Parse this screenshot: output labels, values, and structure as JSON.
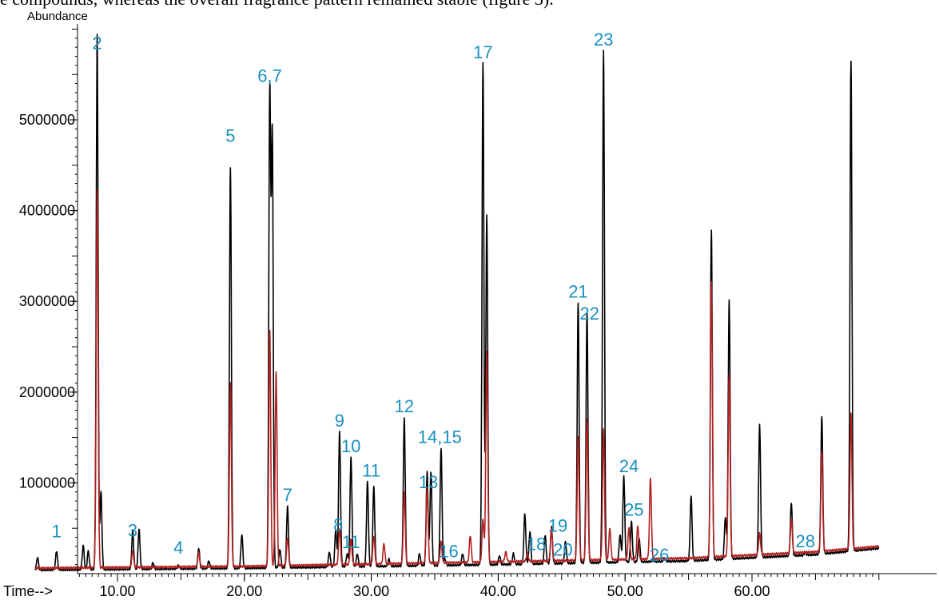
{
  "page": {
    "text": "e compounds, whereas the overall fragrance pattern remained stable (figure 3)."
  },
  "chart_data": {
    "type": "line",
    "ylabel": "Abundance",
    "xlabel": "Time-->",
    "xlim": [
      3.5,
      70.0
    ],
    "ylim": [
      0,
      6000000
    ],
    "x_ticks": [
      10,
      20,
      30,
      40,
      50,
      60
    ],
    "x_tick_labels": [
      "10.00",
      "20.00",
      "30.00",
      "40.00",
      "50.00",
      "60.00"
    ],
    "y_ticks": [
      1000000,
      2000000,
      3000000,
      4000000,
      5000000
    ],
    "y_tick_labels": [
      "1000000",
      "2000000",
      "3000000",
      "4000000",
      "5000000"
    ],
    "grid": false,
    "colors": {
      "black_trace": "#000000",
      "red_trace": "#b22222",
      "peak_label": "#1a8fbf"
    },
    "series": [
      {
        "color": "#000000",
        "baseline": [
          [
            3.5,
            40000
          ],
          [
            20,
            60000
          ],
          [
            40,
            100000
          ],
          [
            55,
            140000
          ],
          [
            65,
            210000
          ],
          [
            70,
            280000
          ]
        ],
        "peaks": [
          [
            3.7,
            180000
          ],
          [
            5.2,
            250000
          ],
          [
            7.3,
            310000
          ],
          [
            7.7,
            250000
          ],
          [
            8.4,
            5950000
          ],
          [
            8.7,
            900000
          ],
          [
            11.2,
            470000
          ],
          [
            11.7,
            490000
          ],
          [
            12.8,
            120000
          ],
          [
            14.8,
            90000
          ],
          [
            16.4,
            280000
          ],
          [
            17.2,
            140000
          ],
          [
            18.9,
            4480000
          ],
          [
            19.8,
            430000
          ],
          [
            22.0,
            5280000
          ],
          [
            22.2,
            4800000
          ],
          [
            22.8,
            270000
          ],
          [
            23.4,
            740000
          ],
          [
            26.7,
            240000
          ],
          [
            27.2,
            480000
          ],
          [
            27.5,
            1560000
          ],
          [
            28.1,
            220000
          ],
          [
            28.4,
            1290000
          ],
          [
            28.9,
            220000
          ],
          [
            29.7,
            1010000
          ],
          [
            30.2,
            960000
          ],
          [
            31.4,
            160000
          ],
          [
            32.6,
            1720000
          ],
          [
            33.8,
            220000
          ],
          [
            34.4,
            1120000
          ],
          [
            34.7,
            1120000
          ],
          [
            35.5,
            1380000
          ],
          [
            35.8,
            160000
          ],
          [
            37.2,
            220000
          ],
          [
            38.8,
            5620000
          ],
          [
            39.1,
            3960000
          ],
          [
            40.1,
            200000
          ],
          [
            41.2,
            220000
          ],
          [
            42.1,
            660000
          ],
          [
            42.5,
            460000
          ],
          [
            43.7,
            420000
          ],
          [
            44.2,
            520000
          ],
          [
            45.3,
            350000
          ],
          [
            46.3,
            2980000
          ],
          [
            47.0,
            2870000
          ],
          [
            48.3,
            5760000
          ],
          [
            49.6,
            430000
          ],
          [
            49.9,
            1080000
          ],
          [
            50.5,
            570000
          ],
          [
            51.1,
            400000
          ],
          [
            52.2,
            150000
          ],
          [
            53.1,
            170000
          ],
          [
            55.2,
            860000
          ],
          [
            56.8,
            3780000
          ],
          [
            57.9,
            620000
          ],
          [
            58.2,
            3020000
          ],
          [
            60.6,
            1650000
          ],
          [
            63.1,
            780000
          ],
          [
            64.2,
            230000
          ],
          [
            65.5,
            1740000
          ],
          [
            67.8,
            5640000
          ]
        ]
      },
      {
        "color": "#b22222",
        "baseline": [
          [
            3.5,
            60000
          ],
          [
            20,
            80000
          ],
          [
            40,
            130000
          ],
          [
            55,
            170000
          ],
          [
            65,
            240000
          ],
          [
            70,
            300000
          ]
        ],
        "peaks": [
          [
            8.4,
            4230000
          ],
          [
            11.2,
            250000
          ],
          [
            16.4,
            230000
          ],
          [
            18.9,
            2100000
          ],
          [
            22.0,
            2670000
          ],
          [
            22.5,
            2220000
          ],
          [
            23.4,
            400000
          ],
          [
            27.5,
            500000
          ],
          [
            28.4,
            380000
          ],
          [
            30.2,
            420000
          ],
          [
            31.0,
            330000
          ],
          [
            32.6,
            900000
          ],
          [
            34.4,
            950000
          ],
          [
            35.5,
            350000
          ],
          [
            37.8,
            420000
          ],
          [
            38.8,
            600000
          ],
          [
            39.1,
            2450000
          ],
          [
            40.6,
            240000
          ],
          [
            42.3,
            220000
          ],
          [
            44.2,
            500000
          ],
          [
            46.3,
            1520000
          ],
          [
            47.0,
            1700000
          ],
          [
            48.3,
            1600000
          ],
          [
            48.8,
            500000
          ],
          [
            50.3,
            500000
          ],
          [
            51.0,
            530000
          ],
          [
            52.0,
            1050000
          ],
          [
            56.8,
            3220000
          ],
          [
            58.2,
            2180000
          ],
          [
            60.6,
            450000
          ],
          [
            63.1,
            600000
          ],
          [
            65.5,
            1340000
          ],
          [
            67.8,
            1780000
          ]
        ]
      }
    ],
    "peak_labels": [
      {
        "label": "1",
        "x": 5.2,
        "y": 400000
      },
      {
        "label": "2",
        "x": 8.4,
        "y": 5780000
      },
      {
        "label": "3",
        "x": 11.2,
        "y": 410000
      },
      {
        "label": "4",
        "x": 14.8,
        "y": 220000
      },
      {
        "label": "5",
        "x": 18.9,
        "y": 4760000
      },
      {
        "label": "6,7",
        "x": 22.0,
        "y": 5420000
      },
      {
        "label": "7",
        "x": 23.4,
        "y": 800000
      },
      {
        "label": "8",
        "x": 27.4,
        "y": 470000
      },
      {
        "label": "9",
        "x": 27.5,
        "y": 1620000
      },
      {
        "label": "10",
        "x": 28.4,
        "y": 1340000
      },
      {
        "label": "11",
        "x": 28.4,
        "y": 280000
      },
      {
        "label": "11",
        "x": 30.0,
        "y": 1070000
      },
      {
        "label": "12",
        "x": 32.6,
        "y": 1780000
      },
      {
        "label": "13",
        "x": 34.5,
        "y": 940000
      },
      {
        "label": "14,15",
        "x": 35.4,
        "y": 1440000
      },
      {
        "label": "16",
        "x": 36.1,
        "y": 180000
      },
      {
        "label": "17",
        "x": 38.8,
        "y": 5680000
      },
      {
        "label": "18",
        "x": 43.0,
        "y": 260000
      },
      {
        "label": "19",
        "x": 44.7,
        "y": 460000
      },
      {
        "label": "20",
        "x": 45.1,
        "y": 200000
      },
      {
        "label": "21",
        "x": 46.3,
        "y": 3040000
      },
      {
        "label": "22",
        "x": 47.2,
        "y": 2800000
      },
      {
        "label": "23",
        "x": 48.3,
        "y": 5820000
      },
      {
        "label": "24",
        "x": 50.3,
        "y": 1120000
      },
      {
        "label": "25",
        "x": 50.7,
        "y": 640000
      },
      {
        "label": "26",
        "x": 52.7,
        "y": 140000
      },
      {
        "label": "28",
        "x": 64.2,
        "y": 290000
      }
    ]
  }
}
